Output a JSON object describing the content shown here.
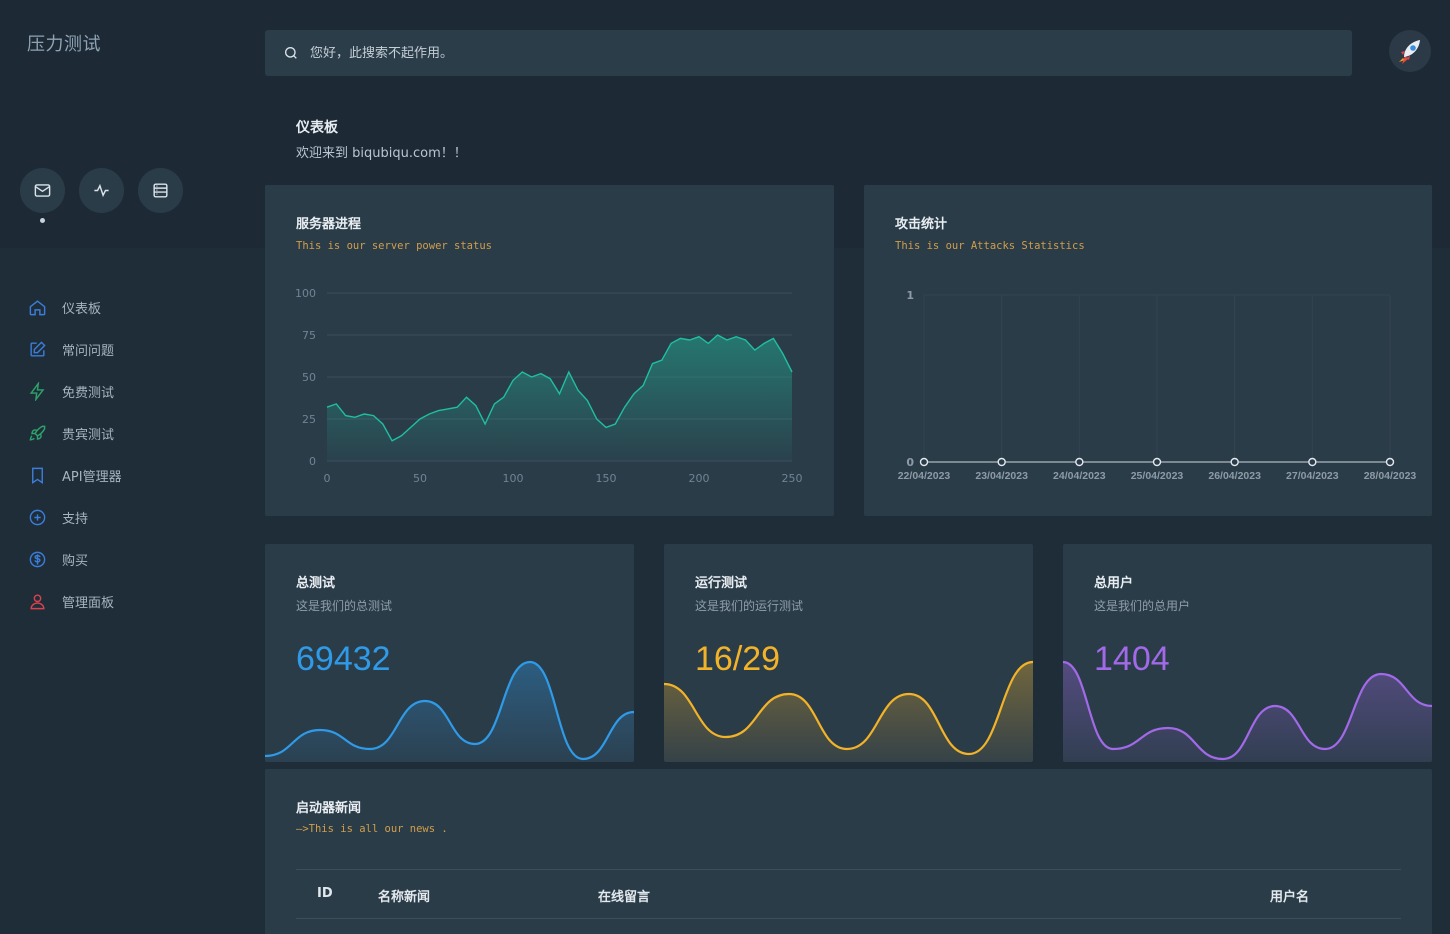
{
  "app": {
    "title": "压力测试"
  },
  "search": {
    "placeholder": "您好，此搜索不起作用。"
  },
  "quick_actions": [
    {
      "icon": "mail-icon"
    },
    {
      "icon": "activity-icon"
    },
    {
      "icon": "server-icon"
    }
  ],
  "sidebar": {
    "items": [
      {
        "label": "仪表板",
        "icon": "home-icon",
        "color": "#3b7dd8"
      },
      {
        "label": "常问问题",
        "icon": "edit-icon",
        "color": "#3b7dd8"
      },
      {
        "label": "免费测试",
        "icon": "zap-icon",
        "color": "#2ea36b"
      },
      {
        "label": "贵宾测试",
        "icon": "rocket-icon",
        "color": "#2ea36b"
      },
      {
        "label": "API管理器",
        "icon": "bookmark-icon",
        "color": "#3b7dd8"
      },
      {
        "label": "支持",
        "icon": "plus-circle-icon",
        "color": "#3b7dd8"
      },
      {
        "label": "购买",
        "icon": "dollar-icon",
        "color": "#3b7dd8"
      },
      {
        "label": "管理面板",
        "icon": "user-icon",
        "color": "#d9434f"
      }
    ]
  },
  "page": {
    "title": "仪表板",
    "subtitle": "欢迎来到 biqubiqu.com！！"
  },
  "server_card": {
    "title": "服务器进程",
    "subtitle": "This is our server power status",
    "chart_data": {
      "type": "area",
      "x_ticks": [
        0,
        50,
        100,
        150,
        200,
        250
      ],
      "y_ticks": [
        0,
        25,
        50,
        75,
        100
      ],
      "xlim": [
        0,
        250
      ],
      "ylim": [
        0,
        100
      ],
      "color": "#1fbfa0",
      "x": [
        0,
        5,
        10,
        15,
        20,
        25,
        30,
        35,
        40,
        45,
        50,
        55,
        60,
        65,
        70,
        75,
        80,
        85,
        90,
        95,
        100,
        105,
        110,
        115,
        120,
        125,
        130,
        135,
        140,
        145,
        150,
        155,
        160,
        165,
        170,
        175,
        180,
        185,
        190,
        195,
        200,
        205,
        210,
        215,
        220,
        225,
        230,
        235,
        240,
        245,
        250
      ],
      "values": [
        32,
        34,
        27,
        26,
        28,
        27,
        22,
        12,
        15,
        20,
        25,
        28,
        30,
        31,
        32,
        38,
        33,
        22,
        34,
        38,
        48,
        53,
        50,
        52,
        49,
        40,
        53,
        42,
        36,
        25,
        20,
        22,
        32,
        40,
        45,
        58,
        60,
        70,
        73,
        72,
        74,
        70,
        75,
        72,
        74,
        72,
        66,
        70,
        73,
        64,
        53
      ]
    }
  },
  "attack_card": {
    "title": "攻击统计",
    "subtitle": "This is our Attacks Statistics",
    "chart_data": {
      "type": "line",
      "categories": [
        "22/04/2023",
        "23/04/2023",
        "24/04/2023",
        "25/04/2023",
        "26/04/2023",
        "27/04/2023",
        "28/04/2023"
      ],
      "values": [
        0,
        0,
        0,
        0,
        0,
        0,
        0
      ],
      "y_ticks": [
        0,
        1
      ],
      "ylim": [
        0,
        1
      ]
    }
  },
  "stats": [
    {
      "title": "总测试",
      "subtitle": "这是我们的总测试",
      "value": "69432",
      "color": "#2f9be8"
    },
    {
      "title": "运行测试",
      "subtitle": "这是我们的运行测试",
      "value": "16/29",
      "color": "#f2b328"
    },
    {
      "title": "总用户",
      "subtitle": "这是我们的总用户",
      "value": "1404",
      "color": "#a26ae8"
    }
  ],
  "news": {
    "title": "启动器新闻",
    "subtitle": "—>This is all our news .",
    "columns": [
      "ID",
      "名称新闻",
      "在线留言",
      "用户名"
    ]
  }
}
